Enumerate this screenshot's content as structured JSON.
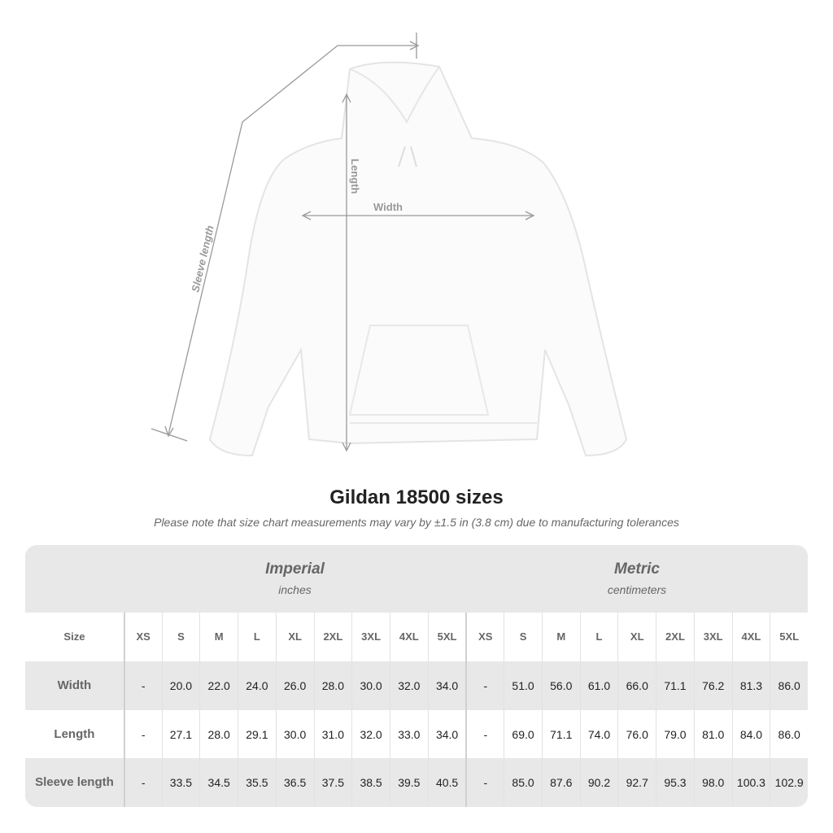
{
  "diagram": {
    "labels": {
      "length": "Length",
      "width": "Width",
      "sleeve": "Sleeve length"
    }
  },
  "title": "Gildan 18500 sizes",
  "note": "Please note that size chart measurements may vary by ±1.5 in (3.8 cm) due to manufacturing tolerances",
  "table": {
    "imperial": {
      "heading": "Imperial",
      "unit": "inches"
    },
    "metric": {
      "heading": "Metric",
      "unit": "centimeters"
    },
    "size_label": "Size",
    "sizes": [
      "XS",
      "S",
      "M",
      "L",
      "XL",
      "2XL",
      "3XL",
      "4XL",
      "5XL"
    ],
    "rows": [
      {
        "label": "Width",
        "imperial": [
          "-",
          "20.0",
          "22.0",
          "24.0",
          "26.0",
          "28.0",
          "30.0",
          "32.0",
          "34.0"
        ],
        "metric": [
          "-",
          "51.0",
          "56.0",
          "61.0",
          "66.0",
          "71.1",
          "76.2",
          "81.3",
          "86.0"
        ]
      },
      {
        "label": "Length",
        "imperial": [
          "-",
          "27.1",
          "28.0",
          "29.1",
          "30.0",
          "31.0",
          "32.0",
          "33.0",
          "34.0"
        ],
        "metric": [
          "-",
          "69.0",
          "71.1",
          "74.0",
          "76.0",
          "79.0",
          "81.0",
          "84.0",
          "86.0"
        ]
      },
      {
        "label": "Sleeve length",
        "imperial": [
          "-",
          "33.5",
          "34.5",
          "35.5",
          "36.5",
          "37.5",
          "38.5",
          "39.5",
          "40.5"
        ],
        "metric": [
          "-",
          "85.0",
          "87.6",
          "90.2",
          "92.7",
          "95.3",
          "98.0",
          "100.3",
          "102.9"
        ]
      }
    ]
  },
  "colors": {
    "band": "#e8e8e8",
    "line": "#999999"
  }
}
